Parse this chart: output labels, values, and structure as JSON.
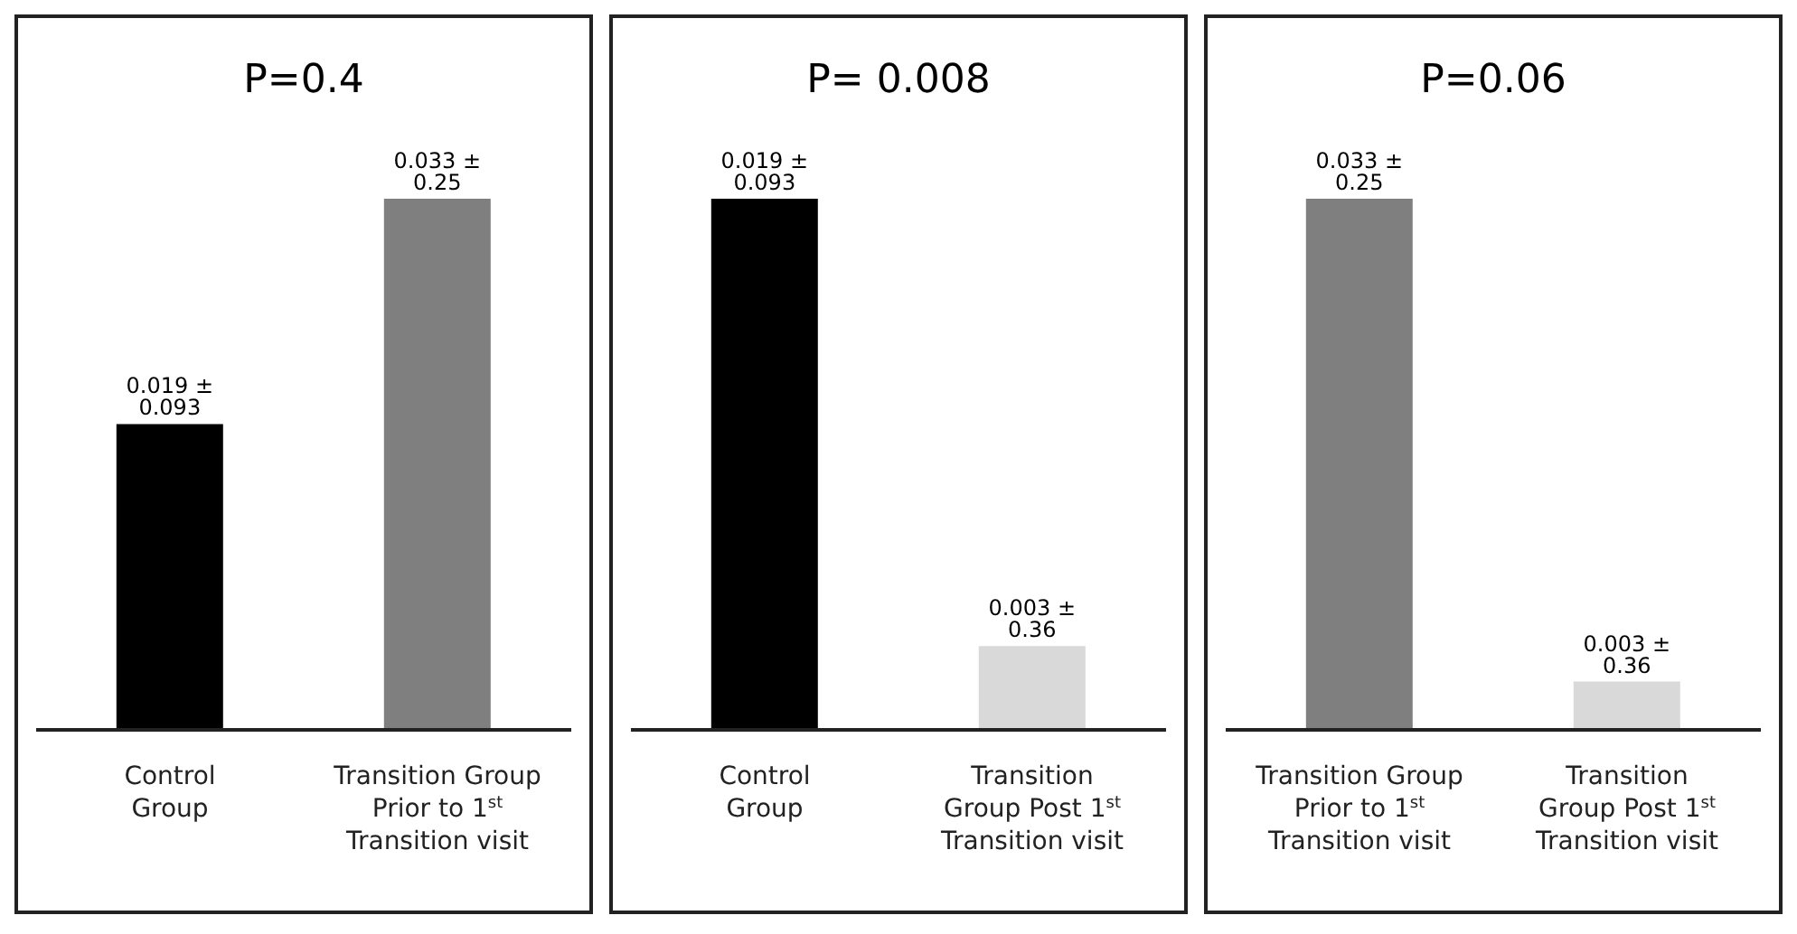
{
  "chart_data": [
    {
      "type": "bar",
      "title": "P=0.4",
      "categories": [
        "Control\nGroup",
        "Transition Group\nPrior to 1$^{st}$\nTransition visit"
      ],
      "values": [
        0.019,
        0.033
      ],
      "colors": [
        "#000000",
        "#7f7f7f"
      ],
      "value_labels": [
        "0.019  ± 0.093",
        "0.033  ± 0.25"
      ]
    },
    {
      "type": "bar",
      "title": "P= 0.008",
      "categories": [
        "Control\nGroup",
        "Transition\nGroup Post 1$^{st}$\nTransition visit"
      ],
      "values": [
        0.019,
        0.003
      ],
      "colors": [
        "#000000",
        "#d9d9d9"
      ],
      "value_labels": [
        "0.019  ± 0.093",
        "0.003  ± 0.36"
      ]
    },
    {
      "type": "bar",
      "title": "P=0.06",
      "categories": [
        "Transition Group\nPrior to 1$^{st}$\nTransition visit",
        "Transition\nGroup Post 1$^{st}$\nTransition visit"
      ],
      "values": [
        0.033,
        0.003
      ],
      "colors": [
        "#7f7f7f",
        "#d9d9d9"
      ],
      "value_labels": [
        "0.033  ± 0.25",
        "0.003  ± 0.36"
      ]
    }
  ]
}
